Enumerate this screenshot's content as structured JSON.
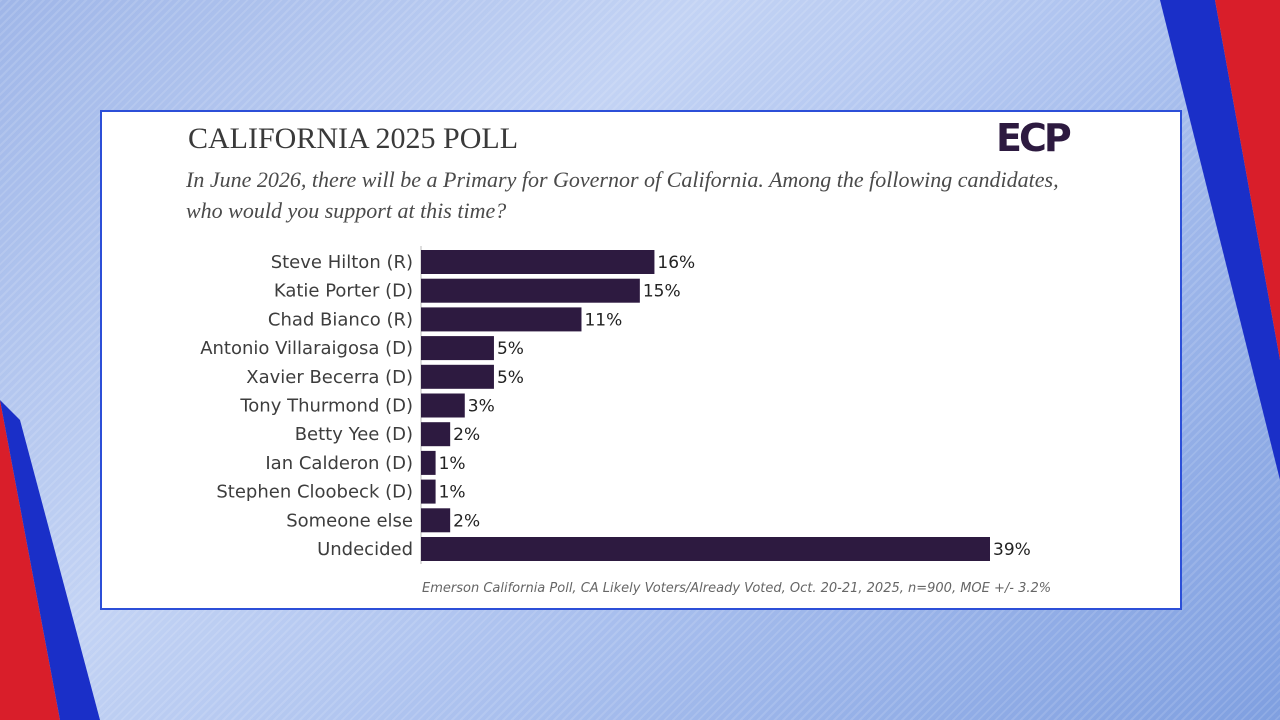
{
  "chart_data": {
    "type": "bar",
    "orientation": "horizontal",
    "logo": "ECP",
    "title": "CALIFORNIA 2025 POLL",
    "subtitle": "In June 2026, there will be a Primary for Governor of California. Among the following candidates, who would you support at this time?",
    "categories": [
      "Steve Hilton (R)",
      "Katie Porter (D)",
      "Chad Bianco (R)",
      "Antonio Villaraigosa (D)",
      "Xavier Becerra (D)",
      "Tony Thurmond (D)",
      "Betty Yee (D)",
      "Ian Calderon (D)",
      "Stephen Cloobeck (D)",
      "Someone else",
      "Undecided"
    ],
    "values": [
      16,
      15,
      11,
      5,
      5,
      3,
      2,
      1,
      1,
      2,
      39
    ],
    "value_labels": [
      "16%",
      "15%",
      "11%",
      "5%",
      "5%",
      "3%",
      "2%",
      "1%",
      "1%",
      "2%",
      "39%"
    ],
    "color": "#2d1a40",
    "source": "Emerson California Poll, CA Likely Voters/Already Voted, Oct. 20-21, 2025, n=900, MOE +/- 3.2%"
  }
}
